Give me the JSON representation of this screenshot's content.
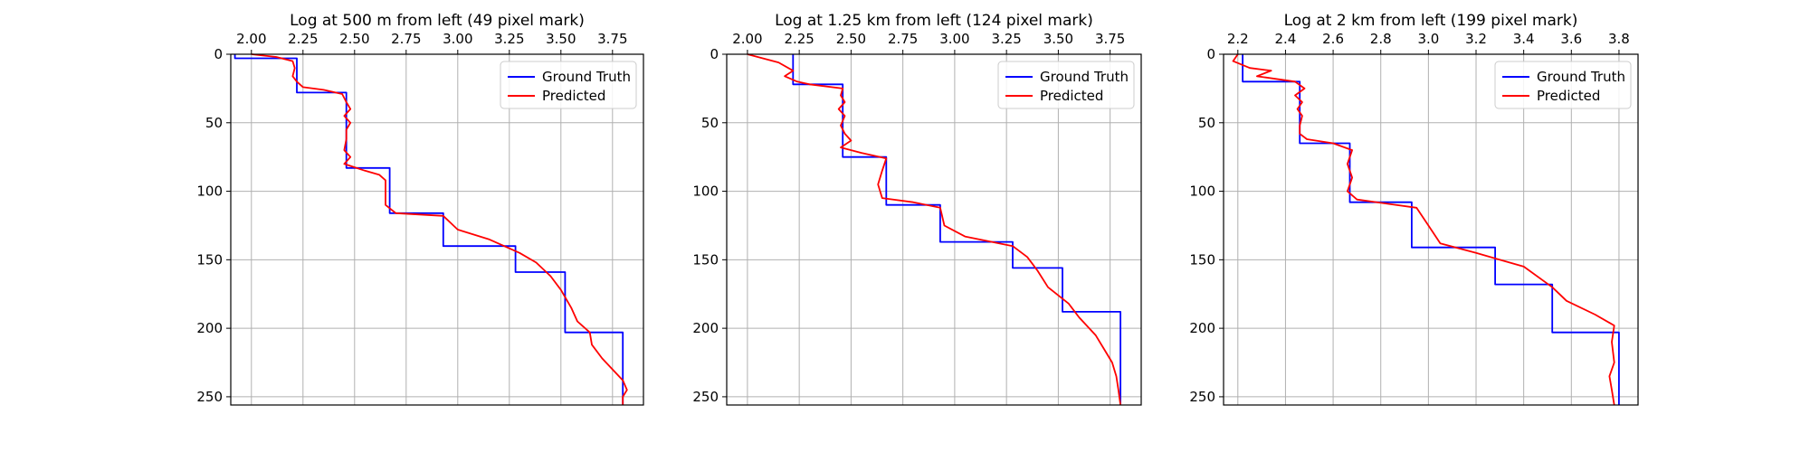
{
  "chart_data": [
    {
      "type": "line",
      "title": "Log at 500 m from left (49 pixel mark)",
      "xlabel": "",
      "ylabel": "",
      "xlim": [
        1.9,
        3.9
      ],
      "ylim": [
        256,
        0
      ],
      "xticks": [
        2.0,
        2.25,
        2.5,
        2.75,
        3.0,
        3.25,
        3.5,
        3.75
      ],
      "xtick_labels": [
        "2.00",
        "2.25",
        "2.50",
        "2.75",
        "3.00",
        "3.25",
        "3.50",
        "3.75"
      ],
      "yticks": [
        0,
        50,
        100,
        150,
        200,
        250
      ],
      "ytick_labels": [
        "0",
        "50",
        "100",
        "150",
        "200",
        "250"
      ],
      "x_axis_position": "top",
      "grid": true,
      "legend": "top-right",
      "series": [
        {
          "name": "Ground Truth",
          "color": "#0000ff",
          "points": [
            [
              1.92,
              0
            ],
            [
              1.92,
              3
            ],
            [
              2.22,
              3
            ],
            [
              2.22,
              28
            ],
            [
              2.46,
              28
            ],
            [
              2.46,
              83
            ],
            [
              2.67,
              83
            ],
            [
              2.67,
              116
            ],
            [
              2.93,
              116
            ],
            [
              2.93,
              140
            ],
            [
              3.28,
              140
            ],
            [
              3.28,
              159
            ],
            [
              3.52,
              159
            ],
            [
              3.52,
              203
            ],
            [
              3.8,
              203
            ],
            [
              3.8,
              256
            ]
          ]
        },
        {
          "name": "Predicted",
          "color": "#ff0000",
          "points": [
            [
              2.0,
              0
            ],
            [
              2.12,
              2
            ],
            [
              2.2,
              5
            ],
            [
              2.21,
              10
            ],
            [
              2.2,
              16
            ],
            [
              2.22,
              20
            ],
            [
              2.25,
              24
            ],
            [
              2.35,
              26
            ],
            [
              2.44,
              29
            ],
            [
              2.46,
              35
            ],
            [
              2.48,
              40
            ],
            [
              2.45,
              45
            ],
            [
              2.48,
              50
            ],
            [
              2.46,
              55
            ],
            [
              2.46,
              62
            ],
            [
              2.45,
              70
            ],
            [
              2.48,
              75
            ],
            [
              2.45,
              80
            ],
            [
              2.55,
              85
            ],
            [
              2.62,
              88
            ],
            [
              2.65,
              92
            ],
            [
              2.65,
              100
            ],
            [
              2.65,
              110
            ],
            [
              2.7,
              116
            ],
            [
              2.93,
              118
            ],
            [
              3.0,
              128
            ],
            [
              3.15,
              135
            ],
            [
              3.3,
              145
            ],
            [
              3.38,
              152
            ],
            [
              3.45,
              162
            ],
            [
              3.5,
              172
            ],
            [
              3.55,
              185
            ],
            [
              3.58,
              195
            ],
            [
              3.64,
              203
            ],
            [
              3.65,
              212
            ],
            [
              3.7,
              222
            ],
            [
              3.75,
              230
            ],
            [
              3.8,
              238
            ],
            [
              3.82,
              245
            ],
            [
              3.8,
              250
            ],
            [
              3.8,
              256
            ]
          ]
        }
      ]
    },
    {
      "type": "line",
      "title": "Log at 1.25 km from left (124 pixel mark)",
      "xlabel": "",
      "ylabel": "",
      "xlim": [
        1.9,
        3.9
      ],
      "ylim": [
        256,
        0
      ],
      "xticks": [
        2.0,
        2.25,
        2.5,
        2.75,
        3.0,
        3.25,
        3.5,
        3.75
      ],
      "xtick_labels": [
        "2.00",
        "2.25",
        "2.50",
        "2.75",
        "3.00",
        "3.25",
        "3.50",
        "3.75"
      ],
      "yticks": [
        0,
        50,
        100,
        150,
        200,
        250
      ],
      "ytick_labels": [
        "0",
        "50",
        "100",
        "150",
        "200",
        "250"
      ],
      "x_axis_position": "top",
      "grid": true,
      "legend": "top-right",
      "series": [
        {
          "name": "Ground Truth",
          "color": "#0000ff",
          "points": [
            [
              2.22,
              0
            ],
            [
              2.22,
              22
            ],
            [
              2.46,
              22
            ],
            [
              2.46,
              75
            ],
            [
              2.67,
              75
            ],
            [
              2.67,
              110
            ],
            [
              2.93,
              110
            ],
            [
              2.93,
              137
            ],
            [
              3.28,
              137
            ],
            [
              3.28,
              156
            ],
            [
              3.52,
              156
            ],
            [
              3.52,
              188
            ],
            [
              3.8,
              188
            ],
            [
              3.8,
              256
            ]
          ]
        },
        {
          "name": "Predicted",
          "color": "#ff0000",
          "points": [
            [
              2.0,
              0
            ],
            [
              2.15,
              6
            ],
            [
              2.22,
              12
            ],
            [
              2.18,
              16
            ],
            [
              2.24,
              20
            ],
            [
              2.3,
              22
            ],
            [
              2.46,
              25
            ],
            [
              2.45,
              30
            ],
            [
              2.47,
              35
            ],
            [
              2.44,
              40
            ],
            [
              2.47,
              45
            ],
            [
              2.45,
              52
            ],
            [
              2.47,
              58
            ],
            [
              2.5,
              63
            ],
            [
              2.45,
              68
            ],
            [
              2.55,
              72
            ],
            [
              2.67,
              76
            ],
            [
              2.65,
              85
            ],
            [
              2.63,
              95
            ],
            [
              2.65,
              105
            ],
            [
              2.8,
              108
            ],
            [
              2.93,
              112
            ],
            [
              2.95,
              125
            ],
            [
              3.05,
              133
            ],
            [
              3.28,
              140
            ],
            [
              3.35,
              148
            ],
            [
              3.4,
              158
            ],
            [
              3.45,
              170
            ],
            [
              3.55,
              182
            ],
            [
              3.6,
              192
            ],
            [
              3.68,
              205
            ],
            [
              3.72,
              215
            ],
            [
              3.76,
              225
            ],
            [
              3.78,
              235
            ],
            [
              3.79,
              245
            ],
            [
              3.8,
              256
            ]
          ]
        }
      ]
    },
    {
      "type": "line",
      "title": "Log at 2 km from left (199 pixel mark)",
      "xlabel": "",
      "ylabel": "",
      "xlim": [
        2.14,
        3.88
      ],
      "ylim": [
        256,
        0
      ],
      "xticks": [
        2.2,
        2.4,
        2.6,
        2.8,
        3.0,
        3.2,
        3.4,
        3.6,
        3.8
      ],
      "xtick_labels": [
        "2.2",
        "2.4",
        "2.6",
        "2.8",
        "3.0",
        "3.2",
        "3.4",
        "3.6",
        "3.8"
      ],
      "yticks": [
        0,
        50,
        100,
        150,
        200,
        250
      ],
      "ytick_labels": [
        "0",
        "50",
        "100",
        "150",
        "200",
        "250"
      ],
      "x_axis_position": "top",
      "grid": true,
      "legend": "top-right",
      "series": [
        {
          "name": "Ground Truth",
          "color": "#0000ff",
          "points": [
            [
              2.22,
              0
            ],
            [
              2.22,
              20
            ],
            [
              2.46,
              20
            ],
            [
              2.46,
              65
            ],
            [
              2.67,
              65
            ],
            [
              2.67,
              108
            ],
            [
              2.93,
              108
            ],
            [
              2.93,
              141
            ],
            [
              3.28,
              141
            ],
            [
              3.28,
              168
            ],
            [
              3.52,
              168
            ],
            [
              3.52,
              203
            ],
            [
              3.8,
              203
            ],
            [
              3.8,
              256
            ]
          ]
        },
        {
          "name": "Predicted",
          "color": "#ff0000",
          "points": [
            [
              2.2,
              0
            ],
            [
              2.18,
              5
            ],
            [
              2.25,
              10
            ],
            [
              2.34,
              12
            ],
            [
              2.28,
              16
            ],
            [
              2.44,
              20
            ],
            [
              2.48,
              25
            ],
            [
              2.44,
              30
            ],
            [
              2.47,
              35
            ],
            [
              2.45,
              40
            ],
            [
              2.47,
              45
            ],
            [
              2.46,
              52
            ],
            [
              2.46,
              58
            ],
            [
              2.49,
              62
            ],
            [
              2.6,
              65
            ],
            [
              2.68,
              70
            ],
            [
              2.66,
              80
            ],
            [
              2.68,
              90
            ],
            [
              2.66,
              100
            ],
            [
              2.7,
              106
            ],
            [
              2.95,
              112
            ],
            [
              3.0,
              125
            ],
            [
              3.05,
              138
            ],
            [
              3.2,
              145
            ],
            [
              3.4,
              155
            ],
            [
              3.52,
              170
            ],
            [
              3.58,
              180
            ],
            [
              3.7,
              190
            ],
            [
              3.78,
              198
            ],
            [
              3.77,
              210
            ],
            [
              3.78,
              225
            ],
            [
              3.76,
              235
            ],
            [
              3.77,
              245
            ],
            [
              3.78,
              256
            ]
          ]
        }
      ]
    }
  ]
}
